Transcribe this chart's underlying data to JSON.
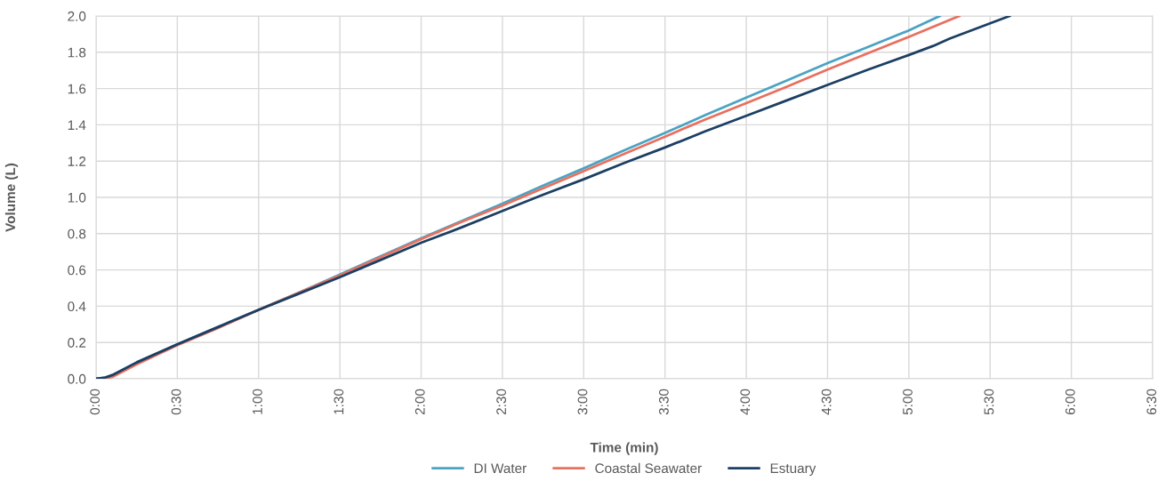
{
  "chart_data": {
    "type": "line",
    "xlabel": "Time (min)",
    "ylabel": "Volume (L)",
    "series": [
      {
        "name": "DI Water",
        "color": "#4ba3c3",
        "x": [
          0,
          0.05,
          0.1,
          0.25,
          0.5,
          0.75,
          1.0,
          1.25,
          1.5,
          1.75,
          2.0,
          2.25,
          2.5,
          2.75,
          3.0,
          3.25,
          3.5,
          3.75,
          4.0,
          4.25,
          4.5,
          4.75,
          5.0,
          5.19
        ],
        "values": [
          0,
          0.005,
          0.02,
          0.09,
          0.19,
          0.285,
          0.38,
          0.475,
          0.575,
          0.675,
          0.775,
          0.87,
          0.965,
          1.065,
          1.16,
          1.26,
          1.355,
          1.455,
          1.55,
          1.645,
          1.74,
          1.83,
          1.92,
          2.0
        ]
      },
      {
        "name": "Coastal Seawater",
        "color": "#e8705f",
        "x": [
          0,
          0.05,
          0.1,
          0.25,
          0.5,
          0.75,
          1.0,
          1.25,
          1.5,
          1.75,
          2.0,
          2.25,
          2.5,
          2.75,
          3.0,
          3.25,
          3.5,
          3.75,
          4.0,
          4.25,
          4.5,
          4.75,
          5.0,
          5.31
        ],
        "values": [
          0,
          0,
          0.01,
          0.08,
          0.185,
          0.28,
          0.38,
          0.475,
          0.57,
          0.67,
          0.77,
          0.865,
          0.955,
          1.05,
          1.145,
          1.24,
          1.335,
          1.43,
          1.52,
          1.61,
          1.705,
          1.795,
          1.885,
          2.0
        ]
      },
      {
        "name": "Estuary",
        "color": "#1b3f63",
        "x": [
          0,
          0.05,
          0.1,
          0.25,
          0.5,
          0.75,
          1.0,
          1.25,
          1.5,
          1.75,
          2.0,
          2.25,
          2.5,
          2.75,
          3.0,
          3.25,
          3.5,
          3.75,
          4.0,
          4.25,
          4.5,
          4.75,
          5.0,
          5.15,
          5.25,
          5.62
        ],
        "values": [
          0,
          0.005,
          0.02,
          0.09,
          0.19,
          0.285,
          0.38,
          0.47,
          0.56,
          0.655,
          0.75,
          0.835,
          0.925,
          1.015,
          1.1,
          1.19,
          1.275,
          1.365,
          1.45,
          1.535,
          1.62,
          1.705,
          1.785,
          1.835,
          1.875,
          2.0
        ]
      }
    ],
    "xlim": [
      0,
      6.5
    ],
    "ylim": [
      0,
      2.0
    ],
    "xticks": [
      {
        "value": 0,
        "label": "0:00"
      },
      {
        "value": 0.5,
        "label": "0:30"
      },
      {
        "value": 1,
        "label": "1:00"
      },
      {
        "value": 1.5,
        "label": "1:30"
      },
      {
        "value": 2,
        "label": "2:00"
      },
      {
        "value": 2.5,
        "label": "2:30"
      },
      {
        "value": 3,
        "label": "3:00"
      },
      {
        "value": 3.5,
        "label": "3:30"
      },
      {
        "value": 4,
        "label": "4:00"
      },
      {
        "value": 4.5,
        "label": "4:30"
      },
      {
        "value": 5,
        "label": "5:00"
      },
      {
        "value": 5.5,
        "label": "5:30"
      },
      {
        "value": 6,
        "label": "6:00"
      },
      {
        "value": 6.5,
        "label": "6:30"
      }
    ],
    "yticks": [
      {
        "value": 0,
        "label": "0.0"
      },
      {
        "value": 0.2,
        "label": "0.2"
      },
      {
        "value": 0.4,
        "label": "0.4"
      },
      {
        "value": 0.6,
        "label": "0.6"
      },
      {
        "value": 0.8,
        "label": "0.8"
      },
      {
        "value": 1.0,
        "label": "1.0"
      },
      {
        "value": 1.2,
        "label": "1.2"
      },
      {
        "value": 1.4,
        "label": "1.4"
      },
      {
        "value": 1.6,
        "label": "1.6"
      },
      {
        "value": 1.8,
        "label": "1.8"
      },
      {
        "value": 2.0,
        "label": "2.0"
      }
    ],
    "grid": true,
    "legend": "bottom",
    "marker": "none",
    "line_style": "solid"
  }
}
